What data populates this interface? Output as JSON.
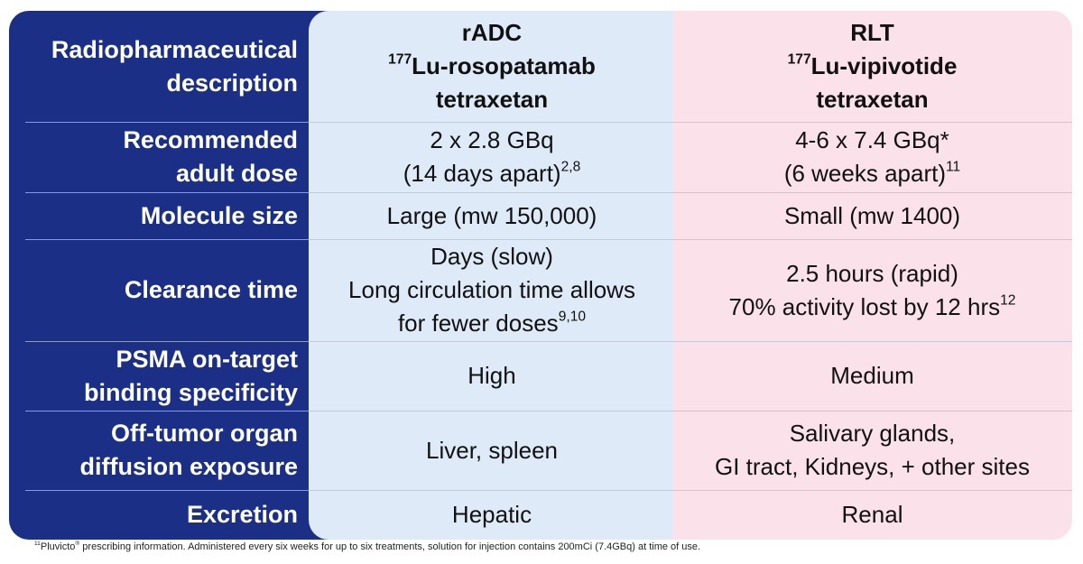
{
  "rows": [
    {
      "label": [
        "Radiopharmaceutical",
        "description"
      ],
      "cells": [
        [
          [
            {
              "text": "rADC"
            }
          ],
          [
            {
              "sup": "177"
            },
            {
              "text": "Lu-rosopatamab"
            }
          ],
          [
            {
              "text": "tetraxetan"
            }
          ]
        ],
        [
          [
            {
              "text": "RLT"
            }
          ],
          [
            {
              "sup": "177"
            },
            {
              "text": "Lu-vipivotide"
            }
          ],
          [
            {
              "text": "tetraxetan"
            }
          ]
        ]
      ]
    },
    {
      "label": [
        "Recommended",
        "adult dose"
      ],
      "cells": [
        [
          [
            {
              "text": "2 x 2.8 GBq"
            }
          ],
          [
            {
              "text": "(14 days apart)",
              "sup": "2,8"
            }
          ]
        ],
        [
          [
            {
              "text": "4-6 x 7.4 GBq*"
            }
          ],
          [
            {
              "text": "(6 weeks apart)",
              "sup": "11"
            }
          ]
        ]
      ]
    },
    {
      "label": [
        "Molecule size"
      ],
      "cells": [
        [
          [
            {
              "text": "Large (mw 150,000)"
            }
          ]
        ],
        [
          [
            {
              "text": "Small (mw 1400)"
            }
          ]
        ]
      ]
    },
    {
      "label": [
        "Clearance time"
      ],
      "cells": [
        [
          [
            {
              "text": "Days (slow)"
            }
          ],
          [
            {
              "text": "Long circulation time allows"
            }
          ],
          [
            {
              "text": "for fewer doses",
              "sup": "9,10"
            }
          ]
        ],
        [
          [
            {
              "text": "2.5 hours (rapid)"
            }
          ],
          [
            {
              "text": "70% activity lost by 12 hrs",
              "sup": "12"
            }
          ]
        ]
      ]
    },
    {
      "label": [
        "PSMA on-target",
        "binding specificity"
      ],
      "cells": [
        [
          [
            {
              "text": "High"
            }
          ]
        ],
        [
          [
            {
              "text": "Medium"
            }
          ]
        ]
      ]
    },
    {
      "label": [
        "Off-tumor organ",
        "diffusion exposure"
      ],
      "cells": [
        [
          [
            {
              "text": "Liver, spleen"
            }
          ]
        ],
        [
          [
            {
              "text": "Salivary glands,"
            }
          ],
          [
            {
              "text": "GI tract, Kidneys, + other sites"
            }
          ]
        ]
      ]
    },
    {
      "label": [
        "Excretion"
      ],
      "cells": [
        [
          [
            {
              "text": "Hepatic"
            }
          ]
        ],
        [
          [
            {
              "text": "Renal"
            }
          ]
        ]
      ]
    }
  ],
  "footnote": [
    {
      "sup": "11"
    },
    {
      "text": "Pluvicto",
      "sup": "®"
    },
    {
      "text": " prescribing information. Administered every six weeks for up to six treatments, solution for injection contains 200mCi (7.4GBq) at time of use."
    }
  ]
}
